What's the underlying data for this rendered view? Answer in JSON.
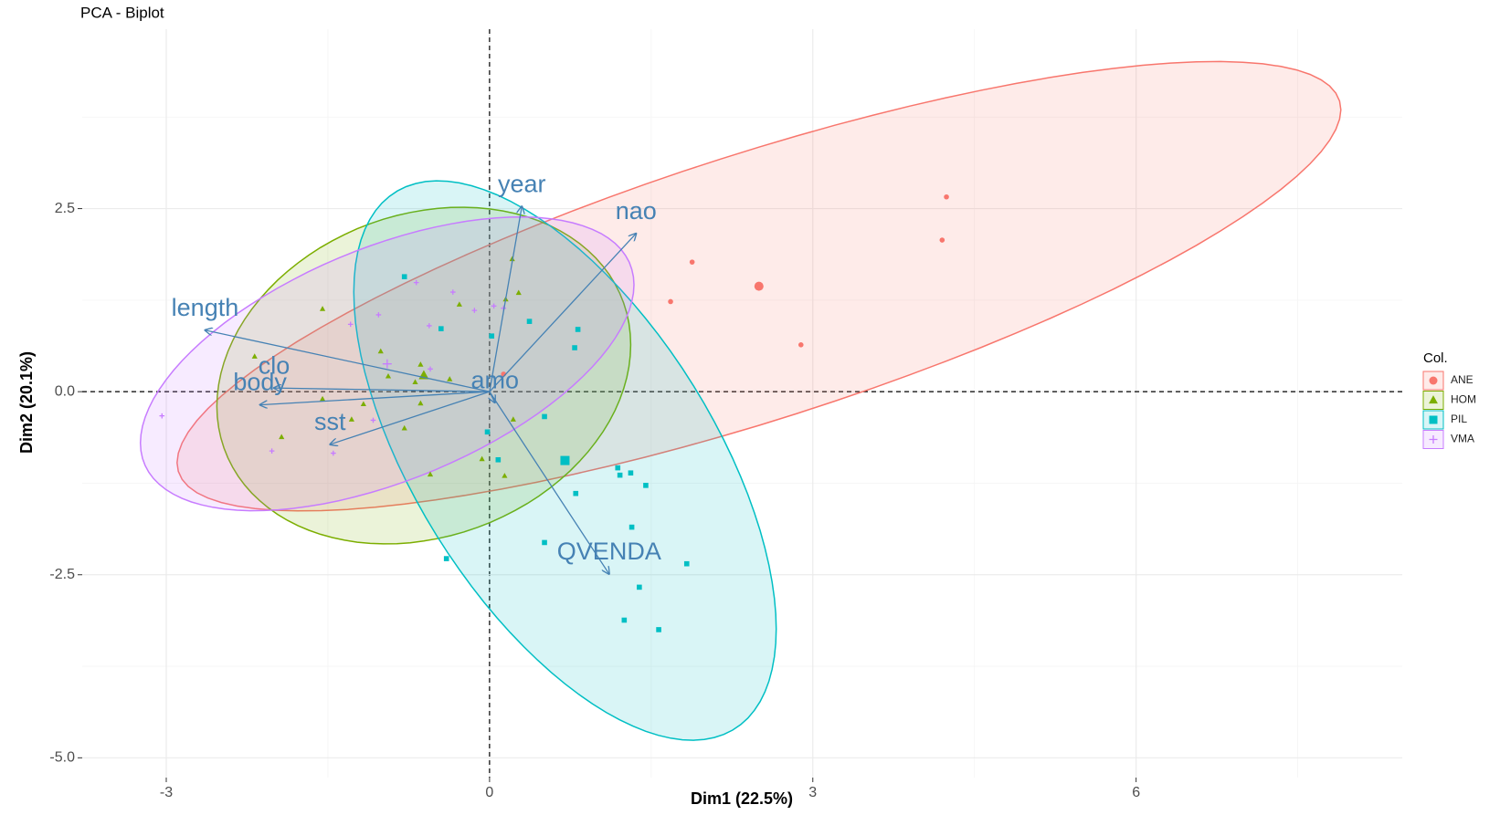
{
  "chart_data": {
    "type": "biplot",
    "title": "PCA - Biplot",
    "xlabel": "Dim1 (22.5%)",
    "ylabel": "Dim2 (20.1%)",
    "legend_title": "Col.",
    "legend_position": "right",
    "xlim": [
      -3.78,
      8.47
    ],
    "ylim": [
      -5.27,
      4.95
    ],
    "xticks": [
      -3,
      0,
      3,
      6
    ],
    "yticks": [
      2.5,
      {
        "value": 0,
        "label": "0.0"
      },
      -2.5,
      {
        "value": -5,
        "label": "-5.0"
      }
    ],
    "xminor": [
      -1.5,
      1.5,
      4.5,
      7.5
    ],
    "yminor": [
      3.75,
      1.25,
      -1.25,
      -3.75
    ],
    "grid": true,
    "series": [
      {
        "name": "ANE",
        "color": "#F8766D",
        "shape": "circle",
        "x": [
          4.24,
          4.2,
          1.88,
          1.68,
          2.89,
          0.13
        ],
        "y": [
          2.66,
          2.07,
          1.77,
          1.23,
          0.64,
          0.24
        ],
        "center": [
          2.5,
          1.44
        ],
        "ellipse": {
          "a": [
            5.4,
            2.41
          ],
          "b": [
            0,
            1.9
          ]
        }
      },
      {
        "name": "HOM",
        "color": "#7CAE00",
        "shape": "triangle",
        "x": [
          -1.55,
          -2.18,
          -1.93,
          -1.55,
          -1.28,
          -1.17,
          -1.01,
          -0.94,
          -0.79,
          -0.69,
          -0.64,
          -0.64,
          -0.55,
          -0.37,
          -0.28,
          -0.07,
          0.14,
          0.15,
          0.21,
          0.27,
          0.22
        ],
        "y": [
          1.13,
          0.48,
          -0.62,
          -0.1,
          -0.38,
          -0.17,
          0.55,
          0.21,
          -0.5,
          0.13,
          0.37,
          -0.16,
          -1.13,
          0.17,
          1.19,
          -0.92,
          -1.15,
          1.26,
          1.81,
          1.35,
          -0.38
        ],
        "center": [
          -0.61,
          0.22
        ],
        "ellipse": {
          "a": [
            1.92,
            0.42
          ],
          "b": [
            0,
            2.26
          ]
        }
      },
      {
        "name": "PIL",
        "color": "#00BFC4",
        "shape": "square",
        "x": [
          -0.79,
          -0.45,
          0.02,
          0.37,
          0.82,
          0.79,
          0.51,
          -0.02,
          0.08,
          1.19,
          1.21,
          1.31,
          1.45,
          0.8,
          1.32,
          0.51,
          -0.4,
          1.83,
          1.39,
          1.25,
          1.57
        ],
        "y": [
          1.57,
          0.86,
          0.76,
          0.96,
          0.85,
          0.6,
          -0.34,
          -0.55,
          -0.93,
          -1.04,
          -1.14,
          -1.11,
          -1.28,
          -1.39,
          -1.85,
          -2.06,
          -2.28,
          -2.35,
          -2.67,
          -3.12,
          -3.25
        ],
        "center": [
          0.7,
          -0.94
        ],
        "ellipse": {
          "a": [
            1.96,
            -2.3
          ],
          "b": [
            0,
            3.05
          ]
        }
      },
      {
        "name": "VMA",
        "color": "#C77CFF",
        "shape": "cross",
        "x": [
          -3.04,
          -2.02,
          -1.45,
          -1.29,
          -1.03,
          -1.08,
          -0.68,
          -0.56,
          -0.55,
          -0.34,
          -0.14,
          0.04,
          0.13
        ],
        "y": [
          -0.33,
          -0.81,
          -0.84,
          0.92,
          1.05,
          -0.39,
          1.49,
          0.9,
          0.31,
          1.36,
          1.11,
          1.17,
          1.14
        ],
        "center": [
          -0.95,
          0.38
        ],
        "ellipse": {
          "a": [
            2.29,
            1.08
          ],
          "b": [
            0,
            1.69
          ]
        }
      }
    ],
    "arrow_color": "#4682B4",
    "variables": [
      {
        "name": "year",
        "x": 0.3,
        "y": 2.53
      },
      {
        "name": "nao",
        "x": 1.36,
        "y": 2.16
      },
      {
        "name": "length",
        "x": -2.64,
        "y": 0.84
      },
      {
        "name": "clo",
        "x": -2.0,
        "y": 0.05
      },
      {
        "name": "body",
        "x": -2.13,
        "y": -0.18
      },
      {
        "name": "sst",
        "x": -1.48,
        "y": -0.72
      },
      {
        "name": "amo",
        "x": 0.05,
        "y": -0.15
      },
      {
        "name": "QVENDA",
        "x": 1.11,
        "y": -2.49
      }
    ]
  }
}
